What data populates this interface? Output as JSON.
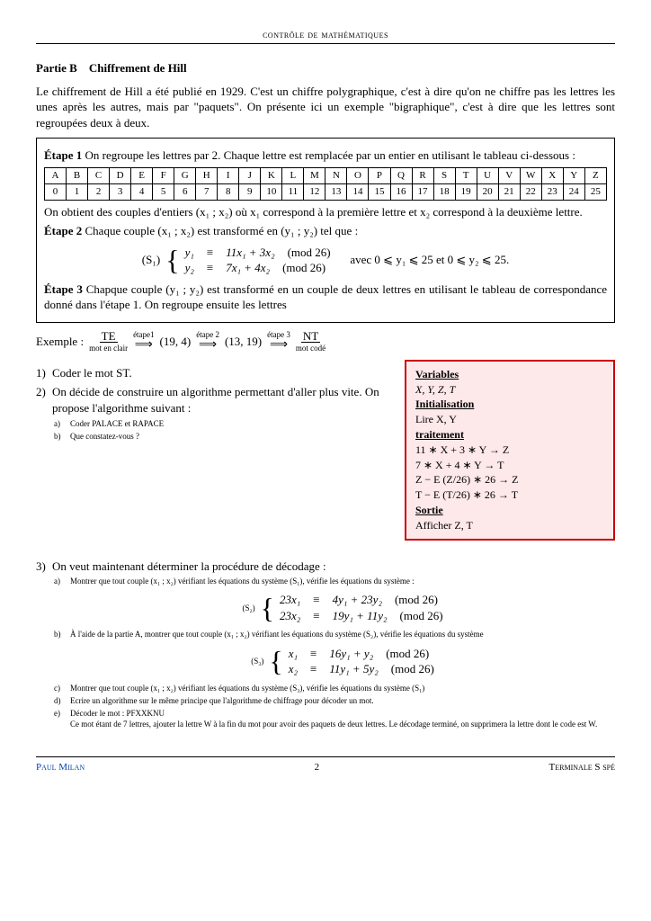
{
  "header": "contrôle de mathématiques",
  "partie": "Partie B",
  "partie_title": "Chiffrement de Hill",
  "intro": "Le chiffrement de Hill a été publié en 1929. C'est un chiffre polygraphique, c'est à dire qu'on ne chiffre pas les lettres les unes après les autres, mais par \"paquets\". On présente ici un exemple \"bigraphique\", c'est à dire que les lettres sont regroupées deux à deux.",
  "etape1_a": "Étape 1",
  "etape1_b": "On regroupe les lettres par 2. Chaque lettre est remplacée par un entier en utilisant le tableau ci-dessous :",
  "alpha_letters": [
    "A",
    "B",
    "C",
    "D",
    "E",
    "F",
    "G",
    "H",
    "I",
    "J",
    "K",
    "L",
    "M",
    "N",
    "O",
    "P",
    "Q",
    "R",
    "S",
    "T",
    "U",
    "V",
    "W",
    "X",
    "Y",
    "Z"
  ],
  "alpha_nums": [
    "0",
    "1",
    "2",
    "3",
    "4",
    "5",
    "6",
    "7",
    "8",
    "9",
    "10",
    "11",
    "12",
    "13",
    "14",
    "15",
    "16",
    "17",
    "18",
    "19",
    "20",
    "21",
    "22",
    "23",
    "24",
    "25"
  ],
  "after_table": "On obtient des couples d'entiers (x₁ ; x₂) où x₁ correspond à la première lettre et x₂ correspond à la deuxième lettre.",
  "etape2_a": "Étape 2",
  "etape2_b": "Chaque couple (x₁ ; x₂) est transformé en (y₁ ; y₂) tel que :",
  "s1_label": "(S₁)",
  "s1_r1a": "y₁",
  "s1_r1b": "≡",
  "s1_r1c": "11x₁ + 3x₂",
  "s1_r1d": "(mod 26)",
  "s1_r2a": "y₂",
  "s1_r2b": "≡",
  "s1_r2c": "7x₁ + 4x₂",
  "s1_r2d": "(mod 26)",
  "s1_cond": "avec 0 ⩽ y₁ ⩽ 25  et  0 ⩽ y₂ ⩽ 25.",
  "etape3_a": "Étape 3",
  "etape3_b": "Chapque couple (y₁ ; y₂) est transformé en un couple de deux lettres en utilisant le tableau de correspondance donné dans l'étape 1. On regroupe ensuite les lettres",
  "exemple_label": "Exemple :",
  "ex_te": "TE",
  "ex_te_lbl": "mot en clair",
  "ex_s1": "étape1",
  "ex_v1": "(19, 4)",
  "ex_s2": "étape 2",
  "ex_v2": "(13, 19)",
  "ex_s3": "étape 3",
  "ex_nt": "NT",
  "ex_nt_lbl": "mot codé",
  "q1": "Coder le mot ST.",
  "q2": "On décide de construire un algorithme permettant d'aller plus vite. On propose l'algorithme suivant :",
  "q2a": "Coder PALACE et RAPACE",
  "q2b": "Que constatez-vous ?",
  "algo": {
    "h1": "Variables",
    "l1": "X, Y, Z, T",
    "h2": "Initialisation",
    "l2": "Lire X, Y",
    "h3": "traitement",
    "l3": "11 ∗ X + 3 ∗ Y → Z",
    "l4": "7 ∗ X + 4 ∗ Y → T",
    "l5": "Z − E (Z/26) ∗ 26 → Z",
    "l6": "T − E (T/26) ∗ 26 → T",
    "h4": "Sortie",
    "l7": "Afficher Z, T"
  },
  "q3": "On veut maintenant déterminer la procédure de décodage :",
  "q3a": "Montrer que tout couple (x₁ ; x₂) vérifiant les équations du système (S₁), vérifie les équations du système :",
  "s2_label": "(S₂)",
  "s2_r1a": "23x₁",
  "s2_r1b": "≡",
  "s2_r1c": "4y₁ + 23y₂",
  "s2_r1d": "(mod 26)",
  "s2_r2a": "23x₂",
  "s2_r2b": "≡",
  "s2_r2c": "19y₁ + 11y₂",
  "s2_r2d": "(mod 26)",
  "q3b": "À l'aide de la partie A, montrer que tout couple (x₁ ; x₂) vérifiant les équations du système (S₂), vérifie les équations du système",
  "s3_label": "(S₃)",
  "s3_r1a": "x₁",
  "s3_r1b": "≡",
  "s3_r1c": "16y₁ + y₂",
  "s3_r1d": "(mod 26)",
  "s3_r2a": "x₂",
  "s3_r2b": "≡",
  "s3_r2c": "11y₁ + 5y₂",
  "s3_r2d": "(mod 26)",
  "q3c": "Montrer que tout couple (x₁ ; x₂) vérifiant les équations du système (S₃), vérifie les équations du système (S₁)",
  "q3d": "Ecrire un algorithme sur le même principe que l'algorithme de chiffrage pour décoder un mot.",
  "q3e": "Décoder le mot : PFXXKNU",
  "q3e_note": "Ce mot étant de 7 lettres, ajouter la lettre W à la fin du mot pour avoir des paquets de deux lettres. Le décodage terminé, on supprimera la lettre dont le code est W.",
  "footer_author": "Paul Milan",
  "footer_page": "2",
  "footer_right": "Terminale S spé"
}
